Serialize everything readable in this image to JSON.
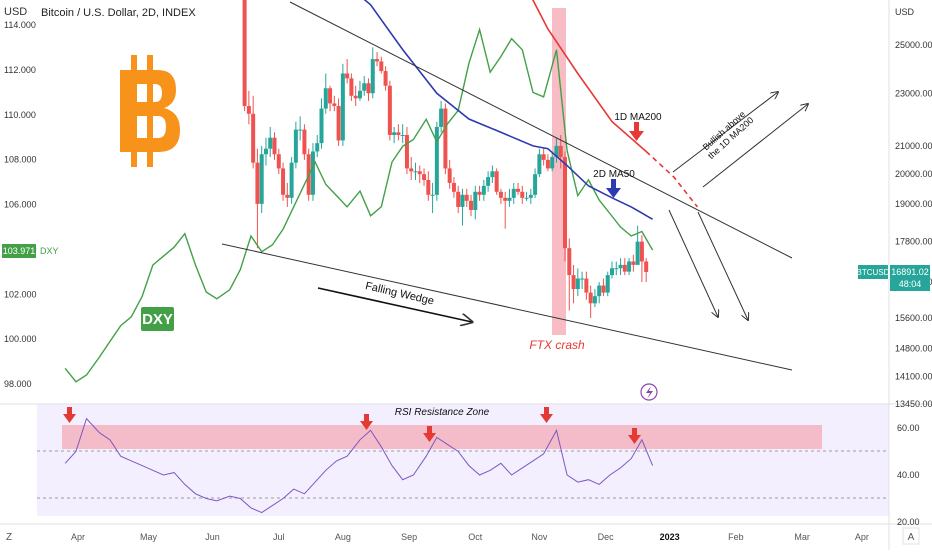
{
  "header": {
    "title": "Bitcoin / U.S. Dollar, 2D, INDEX",
    "axis_unit_top": "USD",
    "axis_unit_bottom": "USD"
  },
  "badges": {
    "dxy_value": "103.971",
    "dxy_ticker": "DXY",
    "dxy_big_label": "DXY",
    "btc_ticker": "BTCUSD",
    "btc_price": "16891.02",
    "btc_countdown": "48:04"
  },
  "annotations": {
    "falling_wedge": "Falling Wedge",
    "ftx_crash": "FTX crash",
    "ma200_label": "1D MA200",
    "ma50_label": "2D MA50",
    "bullish_line1": "Bullish above",
    "bullish_line2": "the 1D MA200",
    "rsi_zone": "RSI Resistance Zone"
  },
  "footer": {
    "left_icon_label": "Z",
    "right_icon_label": "A"
  },
  "colors": {
    "candle_up": "#26a69a",
    "candle_down": "#ef5350",
    "dxy_line": "#43a047",
    "ma50": "#2e3ab0",
    "ma200": "#e53935",
    "rsi_line": "#7e57c2",
    "rsi_zone": "#f4a6b0",
    "ftx_band": "#f4a6b0",
    "btc_logo": "#f7931a"
  },
  "chart_data": [
    {
      "type": "candlestick",
      "title": "Bitcoin / U.S. Dollar, 2D, INDEX",
      "xlabel": "",
      "ylabel": "USD",
      "y_scale": "log",
      "x_ticks": [
        "Z",
        "Apr",
        "May",
        "Jun",
        "Jul",
        "Aug",
        "Sep",
        "Oct",
        "Nov",
        "Dec",
        "2023",
        "Feb",
        "Mar",
        "Apr"
      ],
      "y_ticks": [
        "25000.00",
        "23000.00",
        "21000.00",
        "20000.00",
        "19000.00",
        "17800.00",
        "16600.00",
        "15600.00",
        "14800.00",
        "14100.00",
        "13450.00"
      ],
      "last_price": 16891.02,
      "series": [
        {
          "name": "BTCUSD",
          "kind": "candles",
          "x": [
            "2022-06-10",
            "2022-06-12",
            "2022-06-14",
            "2022-06-16",
            "2022-06-18",
            "2022-06-20",
            "2022-06-22",
            "2022-06-24",
            "2022-06-26",
            "2022-06-28",
            "2022-06-30",
            "2022-07-02",
            "2022-07-04",
            "2022-07-06",
            "2022-07-08",
            "2022-07-10",
            "2022-07-12",
            "2022-07-14",
            "2022-07-16",
            "2022-07-18",
            "2022-07-20",
            "2022-07-22",
            "2022-07-24",
            "2022-07-26",
            "2022-07-28",
            "2022-07-30",
            "2022-08-01",
            "2022-08-03",
            "2022-08-05",
            "2022-08-07",
            "2022-08-09",
            "2022-08-11",
            "2022-08-13",
            "2022-08-15",
            "2022-08-17",
            "2022-08-19",
            "2022-08-21",
            "2022-08-23",
            "2022-08-25",
            "2022-08-27",
            "2022-08-29",
            "2022-08-31",
            "2022-09-02",
            "2022-09-04",
            "2022-09-06",
            "2022-09-08",
            "2022-09-10",
            "2022-09-12",
            "2022-09-14",
            "2022-09-16",
            "2022-09-18",
            "2022-09-20",
            "2022-09-22",
            "2022-09-24",
            "2022-09-26",
            "2022-09-28",
            "2022-09-30",
            "2022-10-02",
            "2022-10-04",
            "2022-10-06",
            "2022-10-08",
            "2022-10-10",
            "2022-10-12",
            "2022-10-14",
            "2022-10-16",
            "2022-10-18",
            "2022-10-20",
            "2022-10-22",
            "2022-10-24",
            "2022-10-26",
            "2022-10-28",
            "2022-10-30",
            "2022-11-01",
            "2022-11-03",
            "2022-11-05",
            "2022-11-07",
            "2022-11-09",
            "2022-11-11",
            "2022-11-13",
            "2022-11-15",
            "2022-11-17",
            "2022-11-19",
            "2022-11-21",
            "2022-11-23",
            "2022-11-25",
            "2022-11-27",
            "2022-11-29",
            "2022-12-01",
            "2022-12-03",
            "2022-12-05",
            "2022-12-07",
            "2022-12-09",
            "2022-12-11",
            "2022-12-13",
            "2022-12-15",
            "2022-12-17"
          ],
          "open": [
            30000,
            28400,
            22500,
            22200,
            20400,
            19000,
            20700,
            20900,
            21300,
            20700,
            20200,
            19300,
            19200,
            20400,
            21600,
            21600,
            20700,
            19300,
            20800,
            21100,
            22400,
            23200,
            22600,
            22500,
            21200,
            23800,
            23600,
            22900,
            22800,
            23100,
            23400,
            23000,
            24400,
            24300,
            23900,
            23300,
            21400,
            21500,
            21400,
            21400,
            20200,
            20100,
            20100,
            20000,
            19800,
            19300,
            19300,
            21700,
            22400,
            20200,
            19700,
            19400,
            18900,
            19300,
            19100,
            18800,
            19400,
            19300,
            19600,
            19900,
            20100,
            19400,
            19200,
            19100,
            19200,
            19500,
            19400,
            19200,
            19200,
            19300,
            20000,
            20700,
            20500,
            20200,
            20600,
            21000,
            20600,
            17600,
            16800,
            16400,
            16700,
            16700,
            16300,
            16000,
            16200,
            16500,
            16300,
            16800,
            17000,
            17000,
            17100,
            16900,
            17200,
            17100,
            17800,
            17200
          ],
          "close": [
            28400,
            22500,
            22200,
            20400,
            19000,
            20700,
            20900,
            21300,
            20700,
            20200,
            19300,
            19200,
            20400,
            21600,
            21600,
            20700,
            19300,
            20800,
            21100,
            22400,
            23200,
            22600,
            22500,
            21200,
            23800,
            23600,
            22900,
            22800,
            23100,
            23400,
            23000,
            24400,
            24300,
            23900,
            23300,
            21400,
            21500,
            21400,
            21400,
            20200,
            20100,
            20100,
            20000,
            19800,
            19300,
            19300,
            21700,
            22400,
            20200,
            19700,
            19400,
            18900,
            19300,
            19100,
            18800,
            19400,
            19300,
            19600,
            19900,
            20100,
            19400,
            19200,
            19100,
            19200,
            19500,
            19400,
            19200,
            19200,
            19300,
            20000,
            20700,
            20500,
            20200,
            20600,
            21000,
            20600,
            17600,
            16800,
            16400,
            16700,
            16700,
            16300,
            16000,
            16200,
            16500,
            16300,
            16800,
            17000,
            17000,
            17100,
            16900,
            17200,
            17100,
            17800,
            17200,
            16891
          ],
          "high": [
            30600,
            28800,
            23100,
            22900,
            20900,
            21000,
            21300,
            21700,
            21500,
            20900,
            20400,
            19700,
            20600,
            21900,
            22100,
            21800,
            20900,
            21100,
            21400,
            22800,
            23800,
            23300,
            22900,
            22800,
            24200,
            24400,
            23800,
            23300,
            23500,
            23700,
            23600,
            24900,
            24700,
            24500,
            24100,
            23500,
            21700,
            21800,
            21800,
            21700,
            20600,
            20400,
            20300,
            20200,
            20100,
            19700,
            21900,
            22700,
            22600,
            20500,
            19900,
            19600,
            19500,
            19500,
            19300,
            19600,
            19600,
            19800,
            20100,
            20300,
            20200,
            19500,
            19400,
            19500,
            19700,
            19700,
            19600,
            19400,
            19500,
            20200,
            20900,
            20900,
            20700,
            20800,
            21300,
            21400,
            20800,
            17900,
            17100,
            17000,
            16900,
            16900,
            16500,
            16400,
            16600,
            16700,
            16900,
            17200,
            17200,
            17300,
            17300,
            17300,
            17400,
            18300,
            18000,
            17300
          ],
          "low": [
            28100,
            22300,
            21800,
            20200,
            17600,
            18700,
            20300,
            20600,
            20500,
            20000,
            19100,
            18900,
            19000,
            20200,
            21200,
            20500,
            19100,
            19100,
            20600,
            20900,
            22200,
            22300,
            22300,
            21000,
            21000,
            23400,
            22700,
            22500,
            22700,
            22900,
            22700,
            22800,
            24100,
            23800,
            23100,
            21200,
            21100,
            21200,
            21100,
            20000,
            19800,
            19800,
            19700,
            19600,
            19100,
            18700,
            19100,
            21500,
            20000,
            19500,
            19200,
            18700,
            18300,
            18900,
            18600,
            18500,
            19100,
            19100,
            19400,
            19700,
            19300,
            19000,
            18200,
            18900,
            19000,
            19300,
            19000,
            19100,
            19000,
            19200,
            19900,
            20300,
            20100,
            20100,
            20400,
            20200,
            17200,
            15800,
            16000,
            16200,
            16400,
            16100,
            15600,
            15900,
            16000,
            16200,
            16200,
            16700,
            16800,
            16800,
            16800,
            16800,
            16900,
            17100,
            16600,
            16600
          ]
        },
        {
          "name": "1D MA200",
          "kind": "line",
          "x": [
            "2022-06-10",
            "2022-07-01",
            "2022-08-01",
            "2022-08-20",
            "2022-09-10",
            "2022-10-01",
            "2022-10-20",
            "2022-11-01",
            "2022-11-15",
            "2022-12-01",
            "2022-12-17"
          ],
          "values": [
            41600,
            40000,
            38200,
            36500,
            33800,
            30500,
            28000,
            25700,
            23800,
            21900,
            20800
          ]
        },
        {
          "name": "1D MA200 projection",
          "kind": "line",
          "x": [
            "2022-12-17",
            "2022-12-30",
            "2023-01-10"
          ],
          "values": [
            20800,
            19900,
            18900
          ]
        },
        {
          "name": "2D MA50",
          "kind": "line",
          "x": [
            "2022-07-01",
            "2022-07-20",
            "2022-08-10",
            "2022-08-25",
            "2022-09-10",
            "2022-09-25",
            "2022-10-10",
            "2022-10-25",
            "2022-11-01",
            "2022-11-10",
            "2022-11-20",
            "2022-12-01",
            "2022-12-10",
            "2022-12-20"
          ],
          "values": [
            30400,
            28600,
            26800,
            24800,
            23000,
            22000,
            21500,
            21000,
            20900,
            20300,
            19600,
            19200,
            18900,
            18500
          ]
        }
      ]
    },
    {
      "type": "line",
      "title": "DXY",
      "ylabel": "",
      "y_ticks": [
        "114.000",
        "112.000",
        "110.000",
        "108.000",
        "106.000",
        "104.000",
        "102.000",
        "100.000",
        "98.000"
      ],
      "last_value": 103.971,
      "series": [
        {
          "name": "DXY",
          "x": [
            "2022-03-20",
            "2022-03-25",
            "2022-03-30",
            "2022-04-05",
            "2022-04-10",
            "2022-04-15",
            "2022-04-20",
            "2022-04-25",
            "2022-04-30",
            "2022-05-05",
            "2022-05-10",
            "2022-05-15",
            "2022-05-20",
            "2022-05-25",
            "2022-05-30",
            "2022-06-05",
            "2022-06-10",
            "2022-06-15",
            "2022-06-20",
            "2022-06-25",
            "2022-06-30",
            "2022-07-05",
            "2022-07-10",
            "2022-07-15",
            "2022-07-20",
            "2022-07-25",
            "2022-07-30",
            "2022-08-05",
            "2022-08-10",
            "2022-08-15",
            "2022-08-20",
            "2022-08-25",
            "2022-08-30",
            "2022-09-05",
            "2022-09-10",
            "2022-09-15",
            "2022-09-20",
            "2022-09-25",
            "2022-09-30",
            "2022-10-05",
            "2022-10-10",
            "2022-10-15",
            "2022-10-20",
            "2022-10-25",
            "2022-10-30",
            "2022-11-05",
            "2022-11-10",
            "2022-11-15",
            "2022-11-20",
            "2022-11-25",
            "2022-11-30",
            "2022-12-05",
            "2022-12-10",
            "2022-12-15",
            "2022-12-20"
          ],
          "values": [
            98.7,
            98.1,
            98.4,
            99.2,
            99.9,
            100.6,
            101.0,
            101.9,
            103.3,
            103.7,
            104.1,
            104.7,
            103.3,
            102.1,
            101.8,
            102.2,
            103.1,
            104.6,
            103.9,
            104.2,
            104.9,
            105.9,
            106.9,
            107.9,
            106.9,
            106.4,
            105.9,
            106.6,
            105.5,
            105.9,
            107.9,
            108.6,
            108.9,
            109.8,
            108.8,
            109.6,
            110.2,
            112.3,
            113.8,
            111.9,
            112.6,
            113.4,
            112.9,
            111.0,
            110.8,
            112.9,
            108.4,
            106.4,
            107.1,
            106.2,
            105.6,
            105.0,
            104.6,
            104.8,
            103.97
          ]
        }
      ]
    },
    {
      "type": "line",
      "title": "RSI Resistance Zone",
      "ylabel": "",
      "y_ticks": [
        "60.00",
        "40.00",
        "20.00"
      ],
      "resistance_zone": [
        54,
        64
      ],
      "guide_levels": [
        50,
        30
      ],
      "series": [
        {
          "name": "RSI",
          "x": [
            "2022-03-20",
            "2022-03-25",
            "2022-03-30",
            "2022-04-05",
            "2022-04-10",
            "2022-04-15",
            "2022-04-20",
            "2022-04-25",
            "2022-04-30",
            "2022-05-05",
            "2022-05-10",
            "2022-05-15",
            "2022-05-20",
            "2022-05-25",
            "2022-05-30",
            "2022-06-05",
            "2022-06-10",
            "2022-06-15",
            "2022-06-20",
            "2022-06-25",
            "2022-06-30",
            "2022-07-05",
            "2022-07-10",
            "2022-07-15",
            "2022-07-20",
            "2022-07-25",
            "2022-07-30",
            "2022-08-05",
            "2022-08-10",
            "2022-08-15",
            "2022-08-20",
            "2022-08-25",
            "2022-08-30",
            "2022-09-05",
            "2022-09-10",
            "2022-09-15",
            "2022-09-20",
            "2022-09-25",
            "2022-09-30",
            "2022-10-05",
            "2022-10-10",
            "2022-10-15",
            "2022-10-20",
            "2022-10-25",
            "2022-10-30",
            "2022-11-05",
            "2022-11-10",
            "2022-11-15",
            "2022-11-20",
            "2022-11-25",
            "2022-11-30",
            "2022-12-05",
            "2022-12-10",
            "2022-12-15",
            "2022-12-20"
          ],
          "values": [
            45,
            50,
            64,
            58,
            55,
            48,
            46,
            44,
            42,
            40,
            41,
            36,
            32,
            30,
            29,
            31,
            30,
            26,
            24,
            27,
            30,
            34,
            32,
            37,
            42,
            46,
            48,
            55,
            59,
            52,
            44,
            38,
            40,
            48,
            56,
            53,
            50,
            44,
            40,
            42,
            45,
            40,
            43,
            46,
            49,
            59,
            40,
            37,
            38,
            36,
            40,
            43,
            47,
            55,
            44
          ]
        }
      ]
    }
  ]
}
